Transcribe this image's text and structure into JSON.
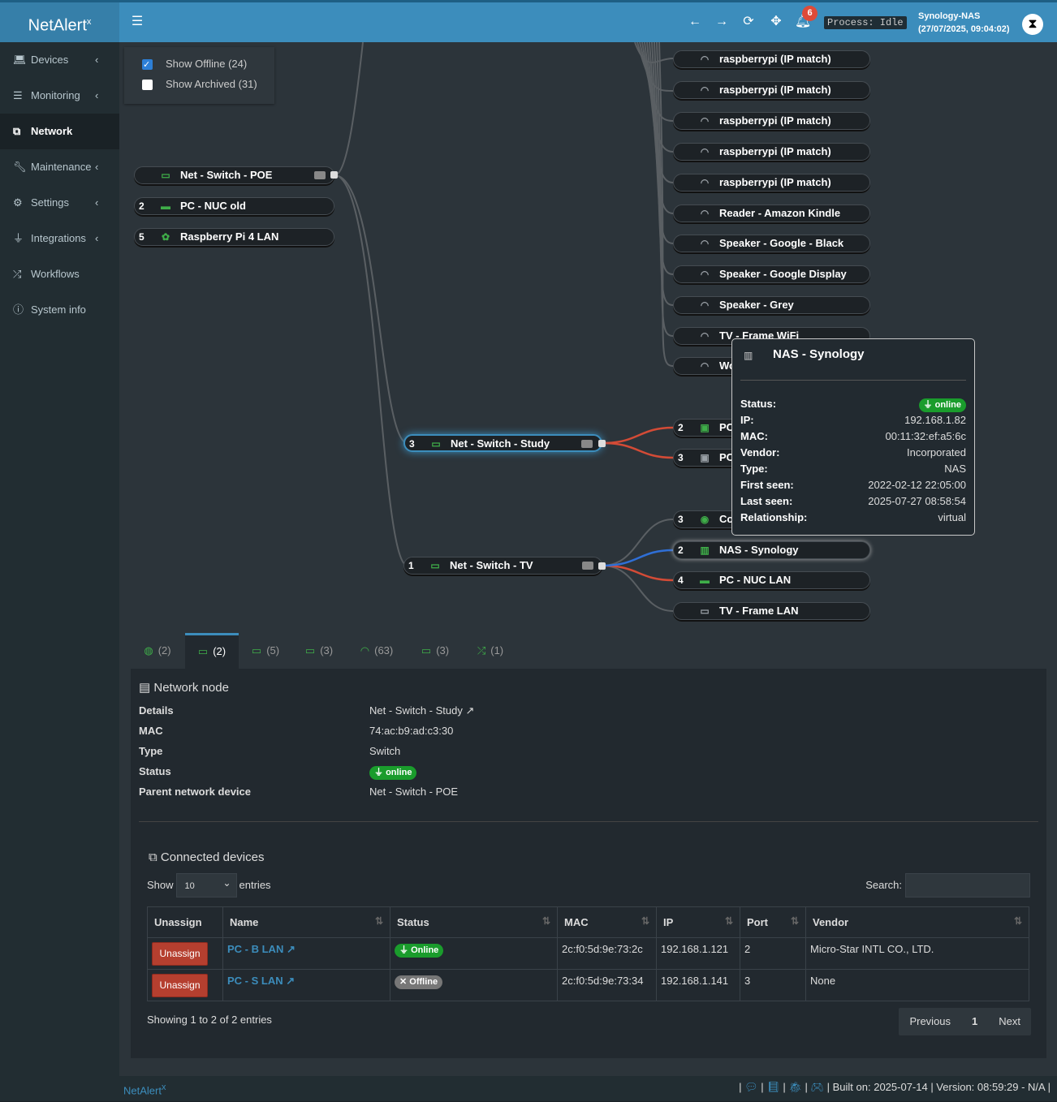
{
  "app": {
    "name": "NetAlert",
    "sup": "x",
    "process": "Process: Idle",
    "host": "Synology-NAS",
    "datetime": "(27/07/2025, 09:04:02)",
    "notif_count": "6"
  },
  "sidebar": {
    "items": [
      {
        "label": "Devices",
        "icon": "laptop-icon"
      },
      {
        "label": "Monitoring",
        "icon": "chart-icon"
      },
      {
        "label": "Network",
        "icon": "sitemap-icon"
      },
      {
        "label": "Maintenance",
        "icon": "wrench-icon"
      },
      {
        "label": "Settings",
        "icon": "gear-icon"
      },
      {
        "label": "Integrations",
        "icon": "plug-icon"
      },
      {
        "label": "Workflows",
        "icon": "shuffle-icon"
      },
      {
        "label": "System info",
        "icon": "info-icon"
      }
    ]
  },
  "filters": {
    "offline": "Show Offline (24)",
    "archived": "Show Archived (31)"
  },
  "tree": {
    "left_nodes": [
      {
        "num": "",
        "label": "Net - Switch - POE"
      },
      {
        "num": "2",
        "label": "PC - NUC old"
      },
      {
        "num": "5",
        "label": "Raspberry Pi 4 LAN"
      }
    ],
    "right_nodes": [
      "raspberrypi (IP match)",
      "raspberrypi (IP match)",
      "raspberrypi (IP match)",
      "raspberrypi (IP match)",
      "raspberrypi (IP match)",
      "Reader - Amazon Kindle",
      "Speaker - Google - Black",
      "Speaker - Google Display",
      "Speaker - Grey",
      "TV - Frame WiFi",
      "Wo"
    ],
    "study": {
      "num": "3",
      "label": "Net - Switch - Study",
      "children": [
        {
          "num": "2",
          "label": "PC"
        },
        {
          "num": "3",
          "label": "PC"
        }
      ]
    },
    "tv": {
      "num": "1",
      "label": "Net - Switch - TV",
      "children": [
        {
          "num": "3",
          "label": "Co"
        },
        {
          "num": "2",
          "label": "NAS - Synology"
        },
        {
          "num": "4",
          "label": "PC - NUC LAN"
        },
        {
          "num": "",
          "label": "TV - Frame LAN"
        }
      ]
    }
  },
  "tooltip": {
    "title": "NAS - Synology",
    "rows": [
      {
        "k": "Status:",
        "v": "online"
      },
      {
        "k": "IP:",
        "v": "192.168.1.82"
      },
      {
        "k": "MAC:",
        "v": "00:11:32:ef:a5:6c"
      },
      {
        "k": "Vendor:",
        "v": "Incorporated"
      },
      {
        "k": "Type:",
        "v": "NAS"
      },
      {
        "k": "First seen:",
        "v": "2022-02-12 22:05:00"
      },
      {
        "k": "Last seen:",
        "v": "2025-07-27 08:58:54"
      },
      {
        "k": "Relationship:",
        "v": "virtual"
      }
    ]
  },
  "tabs": [
    {
      "icon": "globe-icon",
      "count": "(2)"
    },
    {
      "icon": "switch-icon",
      "count": "(2)"
    },
    {
      "icon": "switch-icon",
      "count": "(5)"
    },
    {
      "icon": "switch-icon",
      "count": "(3)"
    },
    {
      "icon": "wifi-icon",
      "count": "(63)"
    },
    {
      "icon": "switch-icon",
      "count": "(3)"
    },
    {
      "icon": "shuffle-icon",
      "count": "(1)"
    }
  ],
  "node_panel": {
    "title": "Network node",
    "rows": [
      {
        "k": "Details",
        "v": "Net - Switch - Study ↗"
      },
      {
        "k": "MAC",
        "v": "74:ac:b9:ad:c3:30"
      },
      {
        "k": "Type",
        "v": "Switch"
      },
      {
        "k": "Status",
        "v": "online"
      },
      {
        "k": "Parent network device",
        "v": "Net - Switch - POE"
      }
    ],
    "connected_title": "Connected devices",
    "show": "Show",
    "entries_value": "10",
    "entries": "entries",
    "search": "Search:",
    "columns": [
      "Unassign",
      "Name",
      "Status",
      "MAC",
      "IP",
      "Port",
      "Vendor"
    ],
    "rows_data": [
      {
        "btn": "Unassign",
        "name": "PC - B LAN ↗",
        "status": "Online",
        "mac": "2c:f0:5d:9e:73:2c",
        "ip": "192.168.1.121",
        "port": "2",
        "vendor": "Micro-Star INTL CO., LTD."
      },
      {
        "btn": "Unassign",
        "name": "PC - S LAN ↗",
        "status": "Offline",
        "mac": "2c:f0:5d:9e:73:34",
        "ip": "192.168.1.141",
        "port": "3",
        "vendor": "None"
      }
    ],
    "showing": "Showing 1 to 2 of 2 entries",
    "prev": "Previous",
    "page": "1",
    "next": "Next"
  },
  "footer": {
    "left": "NetAlert",
    "right": "Built on: 2025-07-14 | Version: 08:59:29 - N/A |"
  }
}
